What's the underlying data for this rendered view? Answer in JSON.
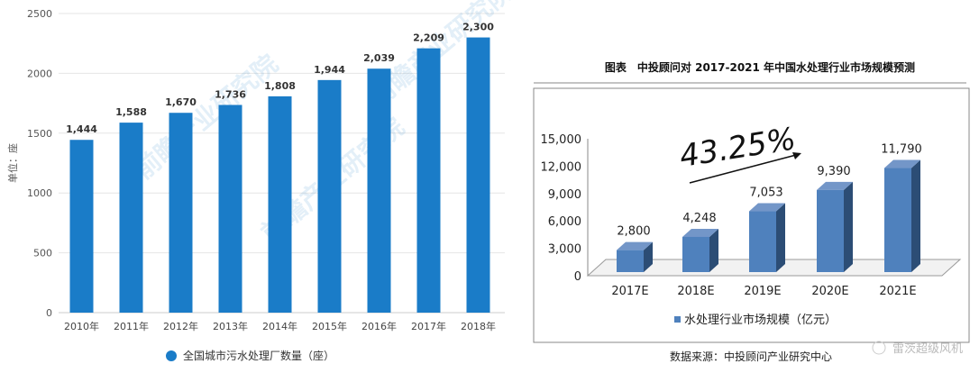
{
  "chart_data": [
    {
      "type": "bar",
      "categories": [
        "2010年",
        "2011年",
        "2012年",
        "2013年",
        "2014年",
        "2015年",
        "2016年",
        "2017年",
        "2018年"
      ],
      "values": [
        1444,
        1588,
        1670,
        1736,
        1808,
        1944,
        2039,
        2209,
        2300
      ],
      "value_labels": [
        "1,444",
        "1,588",
        "1,670",
        "1,736",
        "1,808",
        "1,944",
        "2,039",
        "2,209",
        "2,300"
      ],
      "ylabel": "单位：座",
      "yticks": [
        "0",
        "500",
        "1000",
        "1500",
        "2000",
        "2500"
      ],
      "ylim": [
        0,
        2500
      ],
      "grid": true,
      "legend": "全国城市污水处理厂数量（座）",
      "legend_placement": "bottom",
      "color": "#1a7cc8",
      "watermark": "前瞻产业研究院"
    },
    {
      "type": "bar",
      "title": "图表　中投顾问对 2017-2021 年中国水处理行业市场规模预测",
      "categories": [
        "2017E",
        "2018E",
        "2019E",
        "2020E",
        "2021E"
      ],
      "values": [
        2800,
        4248,
        7053,
        9390,
        11790
      ],
      "value_labels": [
        "2,800",
        "4,248",
        "7,053",
        "9,390",
        "11,790"
      ],
      "yticks": [
        "0",
        "3,000",
        "6,000",
        "9,000",
        "12,000",
        "15,000"
      ],
      "ylim": [
        0,
        15000
      ],
      "grid": false,
      "annotation": "43.25%",
      "legend": "水处理行业市场规模（亿元）",
      "legend_placement": "bottom",
      "color": "#4f81bd",
      "source": "数据来源：中投顾问产业研究中心"
    }
  ],
  "watermark": "雷茨超级风机"
}
